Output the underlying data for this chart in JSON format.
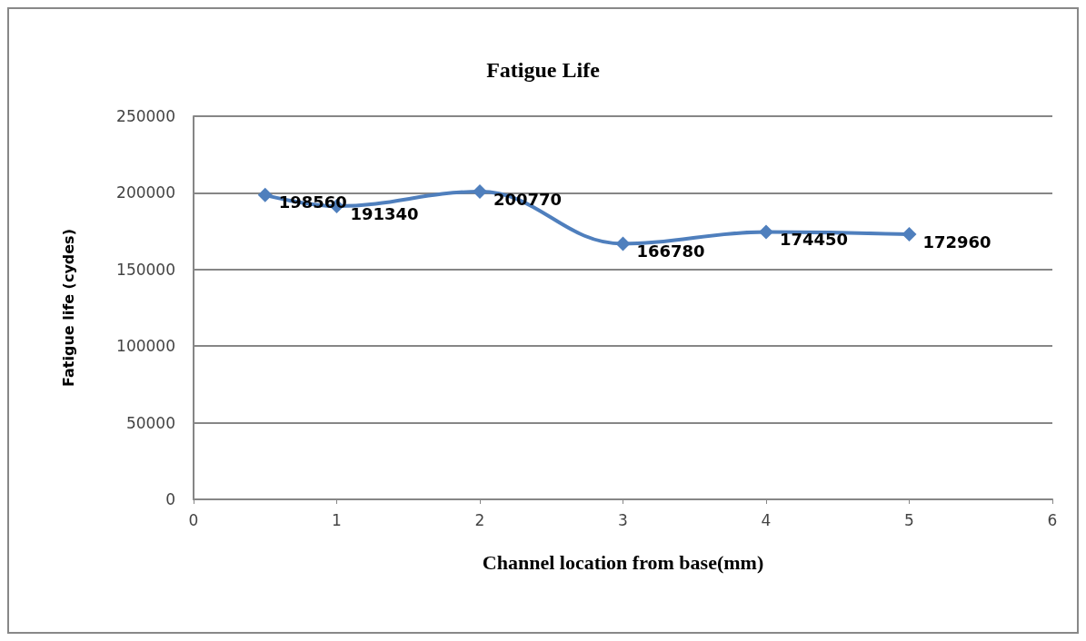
{
  "chart_data": {
    "type": "line",
    "title": "Fatigue Life",
    "xlabel": "Channel location from base(mm)",
    "ylabel": "Fatigue life (cydes)",
    "x": [
      0.5,
      1,
      2,
      3,
      4,
      5
    ],
    "series": [
      {
        "color": "#4f7fbd",
        "values": [
          198560,
          191340,
          200770,
          166780,
          174450,
          172960
        ]
      }
    ],
    "xlim": [
      0,
      6
    ],
    "xticks": [
      0,
      1,
      2,
      3,
      4,
      5,
      6
    ],
    "ylim": [
      0,
      250000
    ],
    "yticks": [
      0,
      50000,
      100000,
      150000,
      200000,
      250000
    ],
    "grid": "y",
    "marker": "diamond",
    "line_style": "solid",
    "data_labels": true
  }
}
